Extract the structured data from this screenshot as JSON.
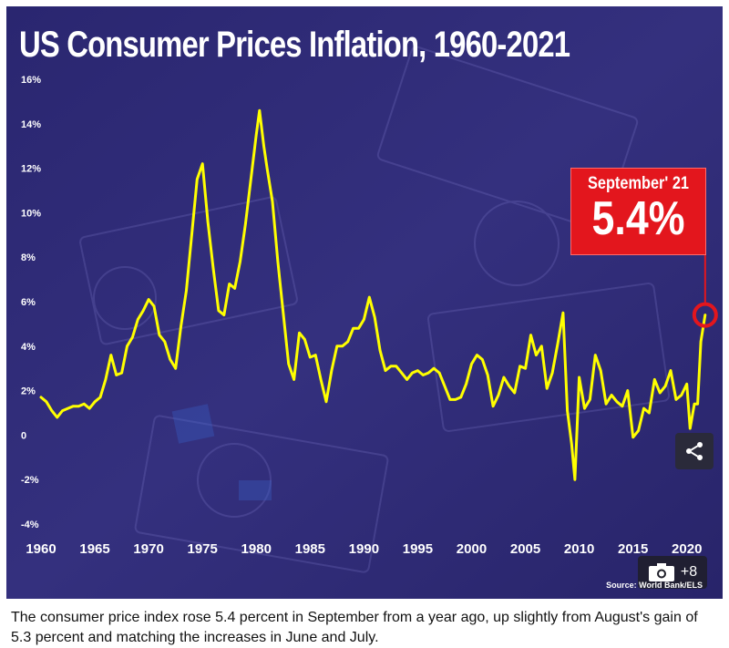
{
  "title": "US Consumer Prices Inflation, 1960-2021",
  "callout": {
    "label": "September' 21",
    "value": "5.4%"
  },
  "source_text": "Source: World Bank/ELS",
  "gallery_count": "+8",
  "caption": "The consumer price index rose 5.4 percent in September from a year ago, up slightly from August's gain of 5.3 percent and matching the increases in June and July.",
  "icons": {
    "share": "share-icon",
    "camera": "camera-icon"
  },
  "colors": {
    "background": "#2e2a72",
    "line": "#ffff00",
    "callout": "#e3161d",
    "text": "#ffffff"
  },
  "chart_data": {
    "type": "line",
    "title": "US Consumer Prices Inflation, 1960-2021",
    "xlabel": "",
    "ylabel": "",
    "xlim": [
      1960,
      2021.8
    ],
    "ylim": [
      -4,
      16
    ],
    "y_ticks": [
      {
        "value": 16,
        "label": "16%"
      },
      {
        "value": 14,
        "label": "14%"
      },
      {
        "value": 12,
        "label": "12%"
      },
      {
        "value": 10,
        "label": "10%"
      },
      {
        "value": 8,
        "label": "8%"
      },
      {
        "value": 6,
        "label": "6%"
      },
      {
        "value": 4,
        "label": "4%"
      },
      {
        "value": 2,
        "label": "2%"
      },
      {
        "value": 0,
        "label": "0"
      },
      {
        "value": -2,
        "label": "-2%"
      },
      {
        "value": -4,
        "label": "-4%"
      }
    ],
    "x_ticks": [
      {
        "value": 1960,
        "label": "1960"
      },
      {
        "value": 1965,
        "label": "1965"
      },
      {
        "value": 1970,
        "label": "1970"
      },
      {
        "value": 1975,
        "label": "1975"
      },
      {
        "value": 1980,
        "label": "1980"
      },
      {
        "value": 1985,
        "label": "1985"
      },
      {
        "value": 1990,
        "label": "1990"
      },
      {
        "value": 1995,
        "label": "1995"
      },
      {
        "value": 2000,
        "label": "2000"
      },
      {
        "value": 2005,
        "label": "2005"
      },
      {
        "value": 2010,
        "label": "2010"
      },
      {
        "value": 2015,
        "label": "2015"
      },
      {
        "value": 2020,
        "label": "2020"
      }
    ],
    "grid": false,
    "legend": "none",
    "series": [
      {
        "color": "#ffff00",
        "points": [
          [
            1960.0,
            1.7
          ],
          [
            1960.5,
            1.5
          ],
          [
            1961.0,
            1.1
          ],
          [
            1961.5,
            0.8
          ],
          [
            1962.0,
            1.1
          ],
          [
            1962.5,
            1.2
          ],
          [
            1963.0,
            1.3
          ],
          [
            1963.5,
            1.3
          ],
          [
            1964.0,
            1.4
          ],
          [
            1964.5,
            1.2
          ],
          [
            1965.0,
            1.5
          ],
          [
            1965.5,
            1.7
          ],
          [
            1966.0,
            2.5
          ],
          [
            1966.5,
            3.6
          ],
          [
            1967.0,
            2.7
          ],
          [
            1967.5,
            2.8
          ],
          [
            1968.0,
            4.0
          ],
          [
            1968.5,
            4.4
          ],
          [
            1969.0,
            5.2
          ],
          [
            1969.5,
            5.6
          ],
          [
            1970.0,
            6.1
          ],
          [
            1970.5,
            5.8
          ],
          [
            1971.0,
            4.5
          ],
          [
            1971.5,
            4.2
          ],
          [
            1972.0,
            3.4
          ],
          [
            1972.5,
            3.0
          ],
          [
            1973.0,
            4.9
          ],
          [
            1973.5,
            6.5
          ],
          [
            1974.0,
            9.0
          ],
          [
            1974.5,
            11.5
          ],
          [
            1975.0,
            12.2
          ],
          [
            1975.5,
            9.6
          ],
          [
            1976.0,
            7.5
          ],
          [
            1976.5,
            5.6
          ],
          [
            1977.0,
            5.4
          ],
          [
            1977.5,
            6.8
          ],
          [
            1978.0,
            6.6
          ],
          [
            1978.5,
            7.8
          ],
          [
            1979.0,
            9.5
          ],
          [
            1979.5,
            11.5
          ],
          [
            1980.0,
            13.5
          ],
          [
            1980.3,
            14.6
          ],
          [
            1980.7,
            13.0
          ],
          [
            1981.0,
            12.0
          ],
          [
            1981.5,
            10.5
          ],
          [
            1982.0,
            7.8
          ],
          [
            1982.5,
            5.5
          ],
          [
            1983.0,
            3.2
          ],
          [
            1983.5,
            2.5
          ],
          [
            1984.0,
            4.6
          ],
          [
            1984.5,
            4.3
          ],
          [
            1985.0,
            3.5
          ],
          [
            1985.5,
            3.6
          ],
          [
            1986.0,
            2.5
          ],
          [
            1986.5,
            1.5
          ],
          [
            1987.0,
            2.9
          ],
          [
            1987.5,
            4.0
          ],
          [
            1988.0,
            4.0
          ],
          [
            1988.5,
            4.2
          ],
          [
            1989.0,
            4.8
          ],
          [
            1989.5,
            4.8
          ],
          [
            1990.0,
            5.2
          ],
          [
            1990.5,
            6.2
          ],
          [
            1991.0,
            5.3
          ],
          [
            1991.5,
            3.8
          ],
          [
            1992.0,
            2.9
          ],
          [
            1992.5,
            3.1
          ],
          [
            1993.0,
            3.1
          ],
          [
            1993.5,
            2.8
          ],
          [
            1994.0,
            2.5
          ],
          [
            1994.5,
            2.8
          ],
          [
            1995.0,
            2.9
          ],
          [
            1995.5,
            2.7
          ],
          [
            1996.0,
            2.8
          ],
          [
            1996.5,
            3.0
          ],
          [
            1997.0,
            2.8
          ],
          [
            1997.5,
            2.2
          ],
          [
            1998.0,
            1.6
          ],
          [
            1998.5,
            1.6
          ],
          [
            1999.0,
            1.7
          ],
          [
            1999.5,
            2.3
          ],
          [
            2000.0,
            3.2
          ],
          [
            2000.5,
            3.6
          ],
          [
            2001.0,
            3.4
          ],
          [
            2001.5,
            2.7
          ],
          [
            2002.0,
            1.3
          ],
          [
            2002.5,
            1.8
          ],
          [
            2003.0,
            2.6
          ],
          [
            2003.5,
            2.2
          ],
          [
            2004.0,
            1.9
          ],
          [
            2004.5,
            3.1
          ],
          [
            2005.0,
            3.0
          ],
          [
            2005.5,
            4.5
          ],
          [
            2006.0,
            3.6
          ],
          [
            2006.5,
            4.0
          ],
          [
            2007.0,
            2.1
          ],
          [
            2007.5,
            2.8
          ],
          [
            2008.0,
            4.1
          ],
          [
            2008.5,
            5.5
          ],
          [
            2008.9,
            1.1
          ],
          [
            2009.3,
            -0.4
          ],
          [
            2009.6,
            -2.0
          ],
          [
            2010.0,
            2.6
          ],
          [
            2010.5,
            1.2
          ],
          [
            2011.0,
            1.6
          ],
          [
            2011.5,
            3.6
          ],
          [
            2012.0,
            2.9
          ],
          [
            2012.5,
            1.4
          ],
          [
            2013.0,
            1.8
          ],
          [
            2013.5,
            1.5
          ],
          [
            2014.0,
            1.3
          ],
          [
            2014.5,
            2.0
          ],
          [
            2015.0,
            -0.1
          ],
          [
            2015.5,
            0.2
          ],
          [
            2016.0,
            1.2
          ],
          [
            2016.5,
            1.0
          ],
          [
            2017.0,
            2.5
          ],
          [
            2017.5,
            1.9
          ],
          [
            2018.0,
            2.2
          ],
          [
            2018.5,
            2.9
          ],
          [
            2019.0,
            1.6
          ],
          [
            2019.5,
            1.8
          ],
          [
            2020.0,
            2.3
          ],
          [
            2020.3,
            0.3
          ],
          [
            2020.7,
            1.4
          ],
          [
            2021.0,
            1.4
          ],
          [
            2021.3,
            4.2
          ],
          [
            2021.7,
            5.4
          ]
        ]
      }
    ],
    "annotation": {
      "x": 2021.7,
      "y": 5.4,
      "label": "September' 21",
      "value_label": "5.4%"
    }
  }
}
